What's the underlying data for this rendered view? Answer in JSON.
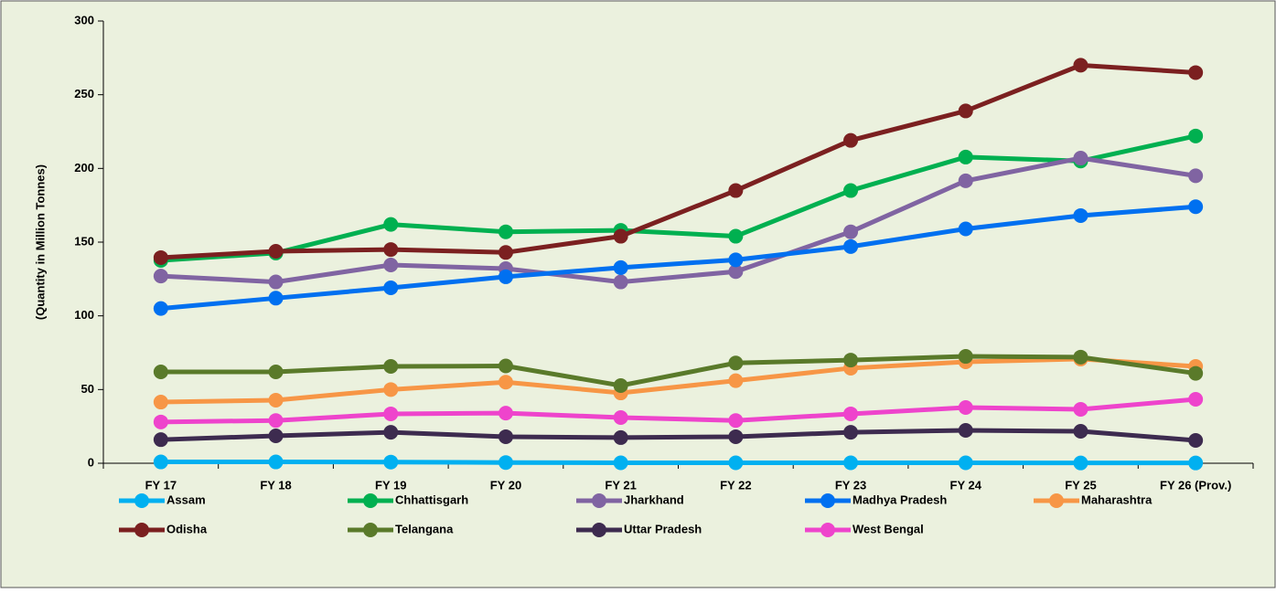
{
  "chart_data": {
    "type": "line",
    "y_label": "(Quantity in Million Tonnes)",
    "categories": [
      "FY 17",
      "FY 18",
      "FY 19",
      "FY 20",
      "FY 21",
      "FY 22",
      "FY 23",
      "FY 24",
      "FY 25",
      "FY 26  (Prov.)"
    ],
    "series": [
      {
        "name": "Assam",
        "color": "#00b0f0",
        "values": [
          0.9,
          0.9,
          0.8,
          0.5,
          0.3,
          0.3,
          0.3,
          0.3,
          0.2,
          0.2
        ]
      },
      {
        "name": "Chhattisgarh",
        "color": "#00b050",
        "values": [
          137.6,
          142.6,
          162,
          157,
          158,
          154,
          185,
          207.7,
          205,
          222
        ]
      },
      {
        "name": "Jharkhand",
        "color": "#8064a2",
        "values": [
          127,
          123,
          134.5,
          132,
          123,
          130,
          157,
          191.6,
          207,
          195
        ]
      },
      {
        "name": "Madhya Pradesh",
        "color": "#0070f0",
        "values": [
          105,
          112,
          119,
          126.5,
          132.7,
          138,
          147,
          159,
          168,
          174
        ]
      },
      {
        "name": "Maharashtra",
        "color": "#f79646",
        "values": [
          41.5,
          42.8,
          50,
          55,
          47.7,
          56,
          64.5,
          68.8,
          70.7,
          65.7
        ]
      },
      {
        "name": "Odisha",
        "color": "#7b2020",
        "values": [
          139.5,
          143.8,
          145,
          143,
          154,
          185,
          219,
          239,
          270,
          265
        ]
      },
      {
        "name": "Telangana",
        "color": "#5a7a2a",
        "values": [
          62,
          62,
          65.7,
          66,
          52.7,
          68,
          70,
          72.5,
          72,
          61
        ]
      },
      {
        "name": "Uttar Pradesh",
        "color": "#3d2b4f",
        "values": [
          16,
          18.6,
          21,
          18,
          17.4,
          18,
          21,
          22.3,
          21.7,
          15.5
        ]
      },
      {
        "name": "West Bengal",
        "color": "#ee44cc",
        "values": [
          28,
          29,
          33.5,
          34,
          31,
          29,
          33.5,
          37.8,
          36.6,
          43.4
        ]
      }
    ],
    "ylim": [
      0,
      300
    ],
    "yticks": [
      0,
      50,
      100,
      150,
      200,
      250,
      300
    ],
    "legend": "bottom"
  }
}
